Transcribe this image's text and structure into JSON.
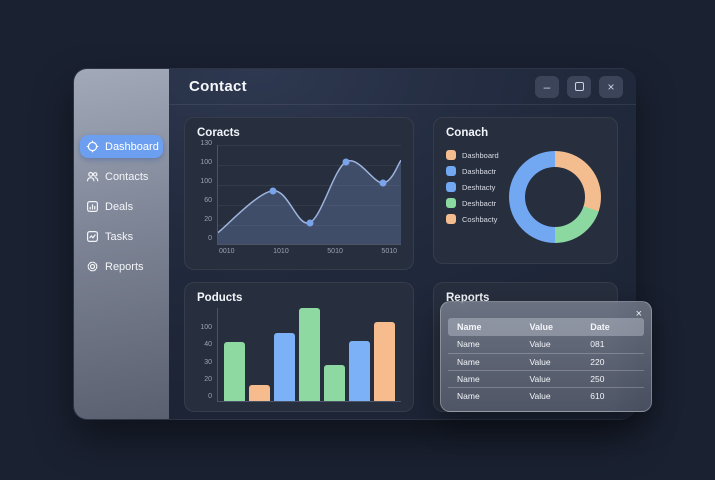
{
  "window": {
    "title": "Contact",
    "controls": {
      "minimize": "–",
      "maximize": "",
      "close": "×"
    }
  },
  "sidebar": {
    "items": [
      {
        "label": "Dashboard",
        "active": true
      },
      {
        "label": "Contacts",
        "active": false
      },
      {
        "label": "Deals",
        "active": false
      },
      {
        "label": "Tasks",
        "active": false
      },
      {
        "label": "Reports",
        "active": false
      }
    ]
  },
  "panels": {
    "line": {
      "title": "Coracts"
    },
    "donut": {
      "title": "Conach",
      "legend": [
        {
          "label": "Dashboard",
          "color": "#f4bd90"
        },
        {
          "label": "Dashbactr",
          "color": "#72a8f2"
        },
        {
          "label": "Deshtacty",
          "color": "#72a8f2"
        },
        {
          "label": "Deshbactr",
          "color": "#8bd8a0"
        },
        {
          "label": "Coshbacty",
          "color": "#f4bd90"
        }
      ]
    },
    "bar": {
      "title": "Poducts"
    },
    "reports": {
      "title": "Reports",
      "popup": {
        "close_icon": "×",
        "columns": [
          "Name",
          "Value",
          "Date"
        ],
        "rows": [
          [
            "Name",
            "Value",
            "081"
          ],
          [
            "Name",
            "Value",
            "220"
          ],
          [
            "Name",
            "Value",
            "250"
          ],
          [
            "Name",
            "Value",
            "610"
          ]
        ]
      }
    }
  },
  "chart_data": [
    {
      "type": "area",
      "title": "Coracts",
      "points": [
        [
          0,
          15
        ],
        [
          0.3,
          70
        ],
        [
          0.5,
          28
        ],
        [
          0.7,
          108
        ],
        [
          0.9,
          80
        ],
        [
          1,
          110
        ]
      ],
      "dot_indices": [
        1,
        2,
        3,
        4
      ],
      "y_ticks": [
        "130",
        "100",
        "100",
        "60",
        "20",
        "0"
      ],
      "x_ticks": [
        "0010",
        "1010",
        "5010",
        "5010"
      ],
      "ylim": [
        0,
        130
      ],
      "grid": true,
      "line_color": "#9db4dd",
      "dot_color": "#79a3ea",
      "fill_color": "rgba(122,150,205,0.30)"
    },
    {
      "type": "pie",
      "title": "Conach",
      "slices": [
        {
          "name": "orange-segment",
          "value": 30,
          "color": "#f4bd90"
        },
        {
          "name": "green-segment",
          "value": 20,
          "color": "#8bd8a0"
        },
        {
          "name": "blue-segment",
          "value": 50,
          "color": "#72a8f2"
        }
      ],
      "start_angle_deg": 0,
      "donut_hole_ratio": 0.65,
      "legend_position": "left"
    },
    {
      "type": "bar",
      "title": "Poducts",
      "values": [
        63,
        17,
        73,
        100,
        39,
        65,
        85
      ],
      "colors": [
        "#8ed9a1",
        "#f7bc8e",
        "#7cb1f7",
        "#8ed9a1",
        "#8ed9a1",
        "#7cb1f7",
        "#f7bc8e"
      ],
      "y_ticks": [
        "100",
        "40",
        "30",
        "20",
        "0"
      ],
      "ylim": [
        0,
        100
      ],
      "grid": false
    },
    {
      "type": "table",
      "title": "Reports",
      "columns": [
        "Name",
        "Value",
        "Date"
      ],
      "rows": [
        [
          "Name",
          "Value",
          "081"
        ],
        [
          "Name",
          "Value",
          "220"
        ],
        [
          "Name",
          "Value",
          "250"
        ],
        [
          "Name",
          "Value",
          "610"
        ]
      ]
    }
  ]
}
